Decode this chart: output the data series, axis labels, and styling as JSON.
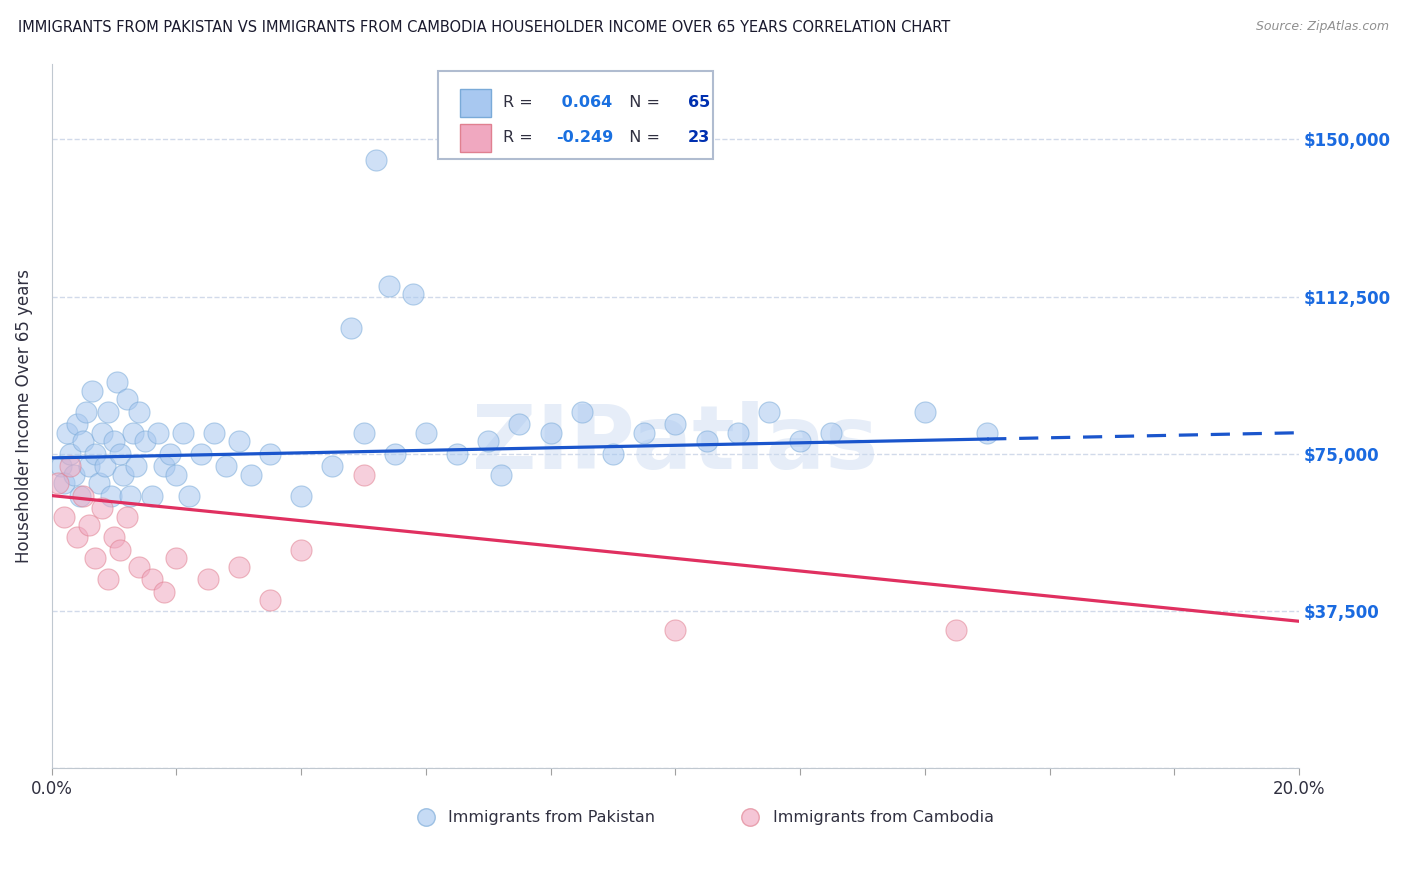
{
  "title": "IMMIGRANTS FROM PAKISTAN VS IMMIGRANTS FROM CAMBODIA HOUSEHOLDER INCOME OVER 65 YEARS CORRELATION CHART",
  "source": "Source: ZipAtlas.com",
  "ylabel": "Householder Income Over 65 years",
  "xmin": 0.0,
  "xmax": 20.0,
  "ymin": 0,
  "ymax": 168000,
  "yticks": [
    0,
    37500,
    75000,
    112500,
    150000
  ],
  "ytick_labels": [
    "",
    "$37,500",
    "$75,000",
    "$112,500",
    "$150,000"
  ],
  "pakistan_R": 0.064,
  "pakistan_N": 65,
  "cambodia_R": -0.249,
  "cambodia_N": 23,
  "pakistan_color": "#a8c8f0",
  "cambodia_color": "#f0a8c0",
  "pakistan_edge_color": "#7aaad8",
  "cambodia_edge_color": "#e08090",
  "pakistan_line_color": "#1a55cc",
  "cambodia_line_color": "#e03060",
  "pakistan_x": [
    0.15,
    0.2,
    0.25,
    0.3,
    0.35,
    0.4,
    0.45,
    0.5,
    0.55,
    0.6,
    0.65,
    0.7,
    0.75,
    0.8,
    0.85,
    0.9,
    0.95,
    1.0,
    1.05,
    1.1,
    1.15,
    1.2,
    1.25,
    1.3,
    1.35,
    1.4,
    1.5,
    1.6,
    1.7,
    1.8,
    1.9,
    2.0,
    2.1,
    2.2,
    2.4,
    2.6,
    2.8,
    3.0,
    3.2,
    3.5,
    4.0,
    4.5,
    5.0,
    5.5,
    6.0,
    6.5,
    7.0,
    7.5,
    8.0,
    8.5,
    9.0,
    9.5,
    10.0,
    10.5,
    11.0,
    11.5,
    12.0,
    12.5,
    14.0,
    15.0,
    5.2,
    5.4,
    5.8,
    4.8,
    7.2
  ],
  "pakistan_y": [
    72000,
    68000,
    80000,
    75000,
    70000,
    82000,
    65000,
    78000,
    85000,
    72000,
    90000,
    75000,
    68000,
    80000,
    72000,
    85000,
    65000,
    78000,
    92000,
    75000,
    70000,
    88000,
    65000,
    80000,
    72000,
    85000,
    78000,
    65000,
    80000,
    72000,
    75000,
    70000,
    80000,
    65000,
    75000,
    80000,
    72000,
    78000,
    70000,
    75000,
    65000,
    72000,
    80000,
    75000,
    80000,
    75000,
    78000,
    82000,
    80000,
    85000,
    75000,
    80000,
    82000,
    78000,
    80000,
    85000,
    78000,
    80000,
    85000,
    80000,
    145000,
    115000,
    113000,
    105000,
    70000
  ],
  "cambodia_x": [
    0.1,
    0.2,
    0.3,
    0.4,
    0.5,
    0.6,
    0.7,
    0.8,
    0.9,
    1.0,
    1.1,
    1.2,
    1.4,
    1.6,
    1.8,
    2.0,
    2.5,
    3.0,
    4.0,
    5.0,
    10.0,
    14.5,
    3.5
  ],
  "cambodia_y": [
    68000,
    60000,
    72000,
    55000,
    65000,
    58000,
    50000,
    62000,
    45000,
    55000,
    52000,
    60000,
    48000,
    45000,
    42000,
    50000,
    45000,
    48000,
    52000,
    70000,
    33000,
    33000,
    40000
  ],
  "pakistan_line_x0": 0,
  "pakistan_line_x1": 20,
  "pakistan_line_y0": 74000,
  "pakistan_line_y1": 80000,
  "cambodia_line_x0": 0,
  "cambodia_line_x1": 20,
  "cambodia_line_y0": 65000,
  "cambodia_line_y1": 35000,
  "watermark": "ZIPatlas",
  "background_color": "#ffffff",
  "grid_color": "#ccd6e8",
  "title_color": "#1a1a2e",
  "ylabel_color": "#303040",
  "tick_color_right": "#1a6ae0",
  "legend_R_color": "#1a70e0",
  "legend_N_color": "#0030b0"
}
